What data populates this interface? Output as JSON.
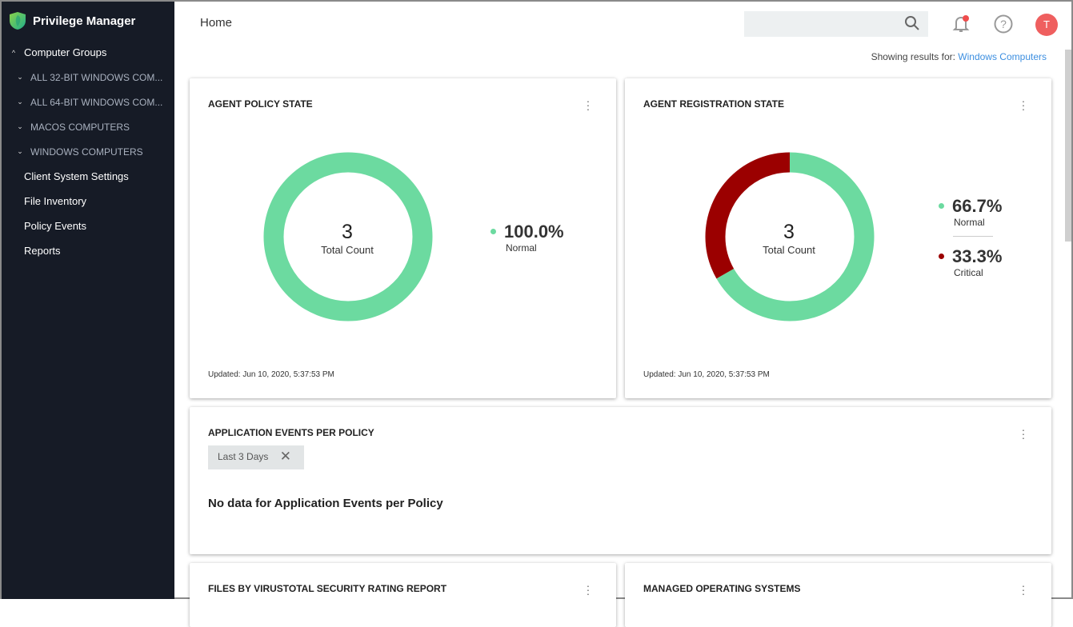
{
  "app": {
    "title": "Privilege Manager"
  },
  "sidebar": {
    "group": "Computer Groups",
    "subgroups": [
      "ALL 32-BIT WINDOWS COM...",
      "ALL 64-BIT WINDOWS COM...",
      "MACOS COMPUTERS",
      "WINDOWS COMPUTERS"
    ],
    "items": [
      "Client System Settings",
      "File Inventory",
      "Policy Events",
      "Reports"
    ]
  },
  "header": {
    "title": "Home",
    "search_placeholder": "",
    "avatar_initial": "T",
    "showing_label": "Showing results for:",
    "showing_value": "Windows Computers"
  },
  "cards": {
    "policy": {
      "title": "AGENT POLICY STATE",
      "total": "3",
      "total_label": "Total Count",
      "legend": [
        {
          "pct": "100.0%",
          "label": "Normal",
          "color": "#6cdaa0",
          "value": 100
        }
      ],
      "updated": "Updated: Jun 10, 2020, 5:37:53 PM"
    },
    "registration": {
      "title": "AGENT REGISTRATION STATE",
      "total": "3",
      "total_label": "Total Count",
      "legend": [
        {
          "pct": "66.7%",
          "label": "Normal",
          "color": "#6cdaa0",
          "value": 66.7
        },
        {
          "pct": "33.3%",
          "label": "Critical",
          "color": "#9b0000",
          "value": 33.3
        }
      ],
      "updated": "Updated: Jun 10, 2020, 5:37:53 PM"
    },
    "app_events": {
      "title": "APPLICATION EVENTS PER POLICY",
      "chip": "Last 3 Days",
      "nodata": "No data for Application Events per Policy"
    },
    "virustotal": {
      "title": "FILES BY VIRUSTOTAL SECURITY RATING REPORT"
    },
    "os": {
      "title": "MANAGED OPERATING SYSTEMS"
    }
  }
}
